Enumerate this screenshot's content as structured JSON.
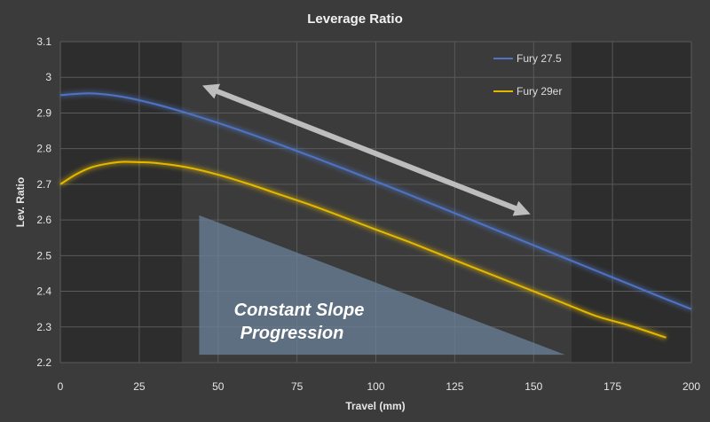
{
  "chart_data": {
    "type": "line",
    "title": "Leverage Ratio",
    "xlabel": "Travel (mm)",
    "ylabel": "Lev. Ratio",
    "xlim": [
      0,
      200
    ],
    "ylim": [
      2.2,
      3.1
    ],
    "x_ticks": [
      "0",
      "25",
      "50",
      "75",
      "100",
      "125",
      "150",
      "175",
      "200"
    ],
    "y_ticks": [
      "2.2",
      "2.3",
      "2.4",
      "2.5",
      "2.6",
      "2.7",
      "2.8",
      "2.9",
      "3",
      "3.1"
    ],
    "grid": true,
    "legend_position": "top-right",
    "shaded_x_ranges": [
      [
        0,
        38.5
      ],
      [
        162,
        200
      ]
    ],
    "series": [
      {
        "name": "Fury 27.5",
        "color": "#4f74c4",
        "x": [
          0,
          10,
          20,
          30,
          40,
          50,
          60,
          70,
          80,
          90,
          100,
          110,
          120,
          130,
          140,
          150,
          160,
          170,
          180,
          190,
          200
        ],
        "y": [
          2.95,
          2.955,
          2.945,
          2.925,
          2.9,
          2.872,
          2.842,
          2.81,
          2.777,
          2.743,
          2.708,
          2.673,
          2.637,
          2.601,
          2.565,
          2.529,
          2.493,
          2.457,
          2.421,
          2.385,
          2.35
        ]
      },
      {
        "name": "Fury 29er",
        "color": "#e5b800",
        "x": [
          0,
          5,
          10,
          15,
          20,
          25,
          30,
          40,
          50,
          60,
          70,
          80,
          90,
          100,
          110,
          120,
          130,
          140,
          150,
          160,
          170,
          180,
          192
        ],
        "y": [
          2.7,
          2.728,
          2.748,
          2.758,
          2.763,
          2.762,
          2.76,
          2.748,
          2.727,
          2.7,
          2.67,
          2.64,
          2.607,
          2.573,
          2.54,
          2.505,
          2.47,
          2.435,
          2.4,
          2.365,
          2.33,
          2.305,
          2.27
        ]
      }
    ],
    "annotations": {
      "arrow": {
        "from": [
          45,
          2.977
        ],
        "to": [
          149,
          2.616
        ],
        "double_headed": true,
        "color": "#bdbdbd"
      },
      "triangle": {
        "points": [
          [
            44,
            2.613
          ],
          [
            44,
            2.222
          ],
          [
            160,
            2.222
          ]
        ],
        "color": "#6a8298"
      },
      "label_line1": "Constant Slope",
      "label_line2": "Progression"
    }
  }
}
